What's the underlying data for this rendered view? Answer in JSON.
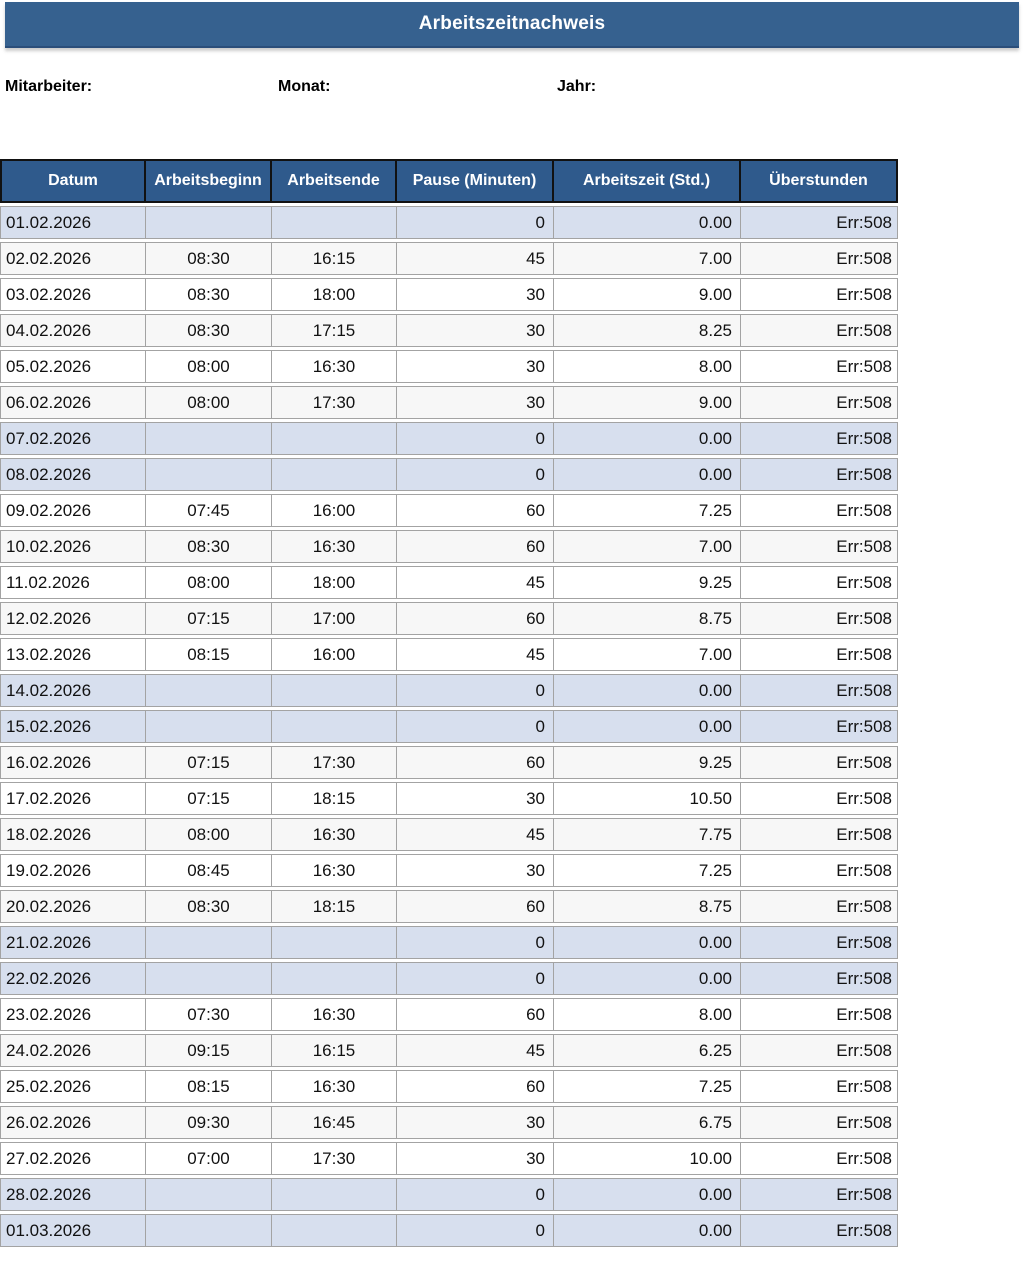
{
  "title": "Arbeitszeitnachweis",
  "meta": {
    "mitarbeiter_label": "Mitarbeiter:",
    "monat_label": "Monat:",
    "jahr_label": "Jahr:"
  },
  "colors": {
    "title_bar": "#36618F",
    "table_header": "#2F5A8C",
    "weekend_row": "#D7DFEE",
    "stripe_row": "#F7F7F7",
    "cell_border": "#A3A3A3"
  },
  "table": {
    "columns": [
      {
        "label": "Datum"
      },
      {
        "label": "Arbeitsbeginn"
      },
      {
        "label": "Arbeitsende"
      },
      {
        "label": "Pause (Minuten)"
      },
      {
        "label": "Arbeitszeit (Std.)"
      },
      {
        "label": "Überstunden"
      }
    ],
    "rows": [
      {
        "datum": "01.02.2026",
        "beginn": "",
        "ende": "",
        "pause": "0",
        "stunden": "0.00",
        "ueberstunden": "Err:508",
        "weekend": true
      },
      {
        "datum": "02.02.2026",
        "beginn": "08:30",
        "ende": "16:15",
        "pause": "45",
        "stunden": "7.00",
        "ueberstunden": "Err:508",
        "weekend": false
      },
      {
        "datum": "03.02.2026",
        "beginn": "08:30",
        "ende": "18:00",
        "pause": "30",
        "stunden": "9.00",
        "ueberstunden": "Err:508",
        "weekend": false
      },
      {
        "datum": "04.02.2026",
        "beginn": "08:30",
        "ende": "17:15",
        "pause": "30",
        "stunden": "8.25",
        "ueberstunden": "Err:508",
        "weekend": false
      },
      {
        "datum": "05.02.2026",
        "beginn": "08:00",
        "ende": "16:30",
        "pause": "30",
        "stunden": "8.00",
        "ueberstunden": "Err:508",
        "weekend": false
      },
      {
        "datum": "06.02.2026",
        "beginn": "08:00",
        "ende": "17:30",
        "pause": "30",
        "stunden": "9.00",
        "ueberstunden": "Err:508",
        "weekend": false
      },
      {
        "datum": "07.02.2026",
        "beginn": "",
        "ende": "",
        "pause": "0",
        "stunden": "0.00",
        "ueberstunden": "Err:508",
        "weekend": true
      },
      {
        "datum": "08.02.2026",
        "beginn": "",
        "ende": "",
        "pause": "0",
        "stunden": "0.00",
        "ueberstunden": "Err:508",
        "weekend": true
      },
      {
        "datum": "09.02.2026",
        "beginn": "07:45",
        "ende": "16:00",
        "pause": "60",
        "stunden": "7.25",
        "ueberstunden": "Err:508",
        "weekend": false
      },
      {
        "datum": "10.02.2026",
        "beginn": "08:30",
        "ende": "16:30",
        "pause": "60",
        "stunden": "7.00",
        "ueberstunden": "Err:508",
        "weekend": false
      },
      {
        "datum": "11.02.2026",
        "beginn": "08:00",
        "ende": "18:00",
        "pause": "45",
        "stunden": "9.25",
        "ueberstunden": "Err:508",
        "weekend": false
      },
      {
        "datum": "12.02.2026",
        "beginn": "07:15",
        "ende": "17:00",
        "pause": "60",
        "stunden": "8.75",
        "ueberstunden": "Err:508",
        "weekend": false
      },
      {
        "datum": "13.02.2026",
        "beginn": "08:15",
        "ende": "16:00",
        "pause": "45",
        "stunden": "7.00",
        "ueberstunden": "Err:508",
        "weekend": false
      },
      {
        "datum": "14.02.2026",
        "beginn": "",
        "ende": "",
        "pause": "0",
        "stunden": "0.00",
        "ueberstunden": "Err:508",
        "weekend": true
      },
      {
        "datum": "15.02.2026",
        "beginn": "",
        "ende": "",
        "pause": "0",
        "stunden": "0.00",
        "ueberstunden": "Err:508",
        "weekend": true
      },
      {
        "datum": "16.02.2026",
        "beginn": "07:15",
        "ende": "17:30",
        "pause": "60",
        "stunden": "9.25",
        "ueberstunden": "Err:508",
        "weekend": false
      },
      {
        "datum": "17.02.2026",
        "beginn": "07:15",
        "ende": "18:15",
        "pause": "30",
        "stunden": "10.50",
        "ueberstunden": "Err:508",
        "weekend": false
      },
      {
        "datum": "18.02.2026",
        "beginn": "08:00",
        "ende": "16:30",
        "pause": "45",
        "stunden": "7.75",
        "ueberstunden": "Err:508",
        "weekend": false
      },
      {
        "datum": "19.02.2026",
        "beginn": "08:45",
        "ende": "16:30",
        "pause": "30",
        "stunden": "7.25",
        "ueberstunden": "Err:508",
        "weekend": false
      },
      {
        "datum": "20.02.2026",
        "beginn": "08:30",
        "ende": "18:15",
        "pause": "60",
        "stunden": "8.75",
        "ueberstunden": "Err:508",
        "weekend": false
      },
      {
        "datum": "21.02.2026",
        "beginn": "",
        "ende": "",
        "pause": "0",
        "stunden": "0.00",
        "ueberstunden": "Err:508",
        "weekend": true
      },
      {
        "datum": "22.02.2026",
        "beginn": "",
        "ende": "",
        "pause": "0",
        "stunden": "0.00",
        "ueberstunden": "Err:508",
        "weekend": true
      },
      {
        "datum": "23.02.2026",
        "beginn": "07:30",
        "ende": "16:30",
        "pause": "60",
        "stunden": "8.00",
        "ueberstunden": "Err:508",
        "weekend": false
      },
      {
        "datum": "24.02.2026",
        "beginn": "09:15",
        "ende": "16:15",
        "pause": "45",
        "stunden": "6.25",
        "ueberstunden": "Err:508",
        "weekend": false
      },
      {
        "datum": "25.02.2026",
        "beginn": "08:15",
        "ende": "16:30",
        "pause": "60",
        "stunden": "7.25",
        "ueberstunden": "Err:508",
        "weekend": false
      },
      {
        "datum": "26.02.2026",
        "beginn": "09:30",
        "ende": "16:45",
        "pause": "30",
        "stunden": "6.75",
        "ueberstunden": "Err:508",
        "weekend": false
      },
      {
        "datum": "27.02.2026",
        "beginn": "07:00",
        "ende": "17:30",
        "pause": "30",
        "stunden": "10.00",
        "ueberstunden": "Err:508",
        "weekend": false
      },
      {
        "datum": "28.02.2026",
        "beginn": "",
        "ende": "",
        "pause": "0",
        "stunden": "0.00",
        "ueberstunden": "Err:508",
        "weekend": true
      },
      {
        "datum": "01.03.2026",
        "beginn": "",
        "ende": "",
        "pause": "0",
        "stunden": "0.00",
        "ueberstunden": "Err:508",
        "weekend": true
      }
    ]
  }
}
